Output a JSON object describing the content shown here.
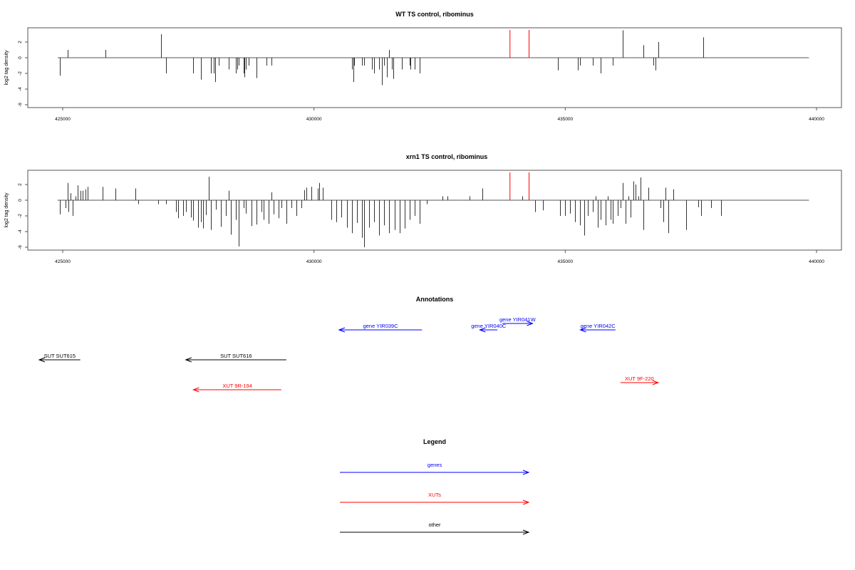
{
  "colors": {
    "gene": "#0000ff",
    "xut": "#ff0000",
    "other": "#000000",
    "highlight": "#ff0000",
    "bar": "#333333"
  },
  "chart_data": [
    {
      "type": "bar",
      "title": "WT TS control, ribominus",
      "xlabel": "",
      "ylabel": "log2 tag density",
      "xlim": [
        424400,
        440500
      ],
      "ylim": [
        -6.3,
        3.8
      ],
      "xticks": [
        425000,
        430000,
        435000,
        440000
      ],
      "xtick_labels": [
        "425000",
        "430000",
        "435000",
        "440000"
      ],
      "yticks": [
        2,
        0,
        -2,
        -4,
        -6
      ],
      "ytick_labels": [
        "2",
        "0",
        "-2",
        "-4",
        "-6"
      ],
      "baseline": {
        "from": 424900,
        "to": 439850
      },
      "highlights": [
        433900,
        434280
      ],
      "points": [
        [
          424950,
          -2.3
        ],
        [
          425100,
          1.0
        ],
        [
          425850,
          1.0
        ],
        [
          426950,
          3.0
        ],
        [
          427050,
          -2.0
        ],
        [
          427600,
          -2.0
        ],
        [
          427750,
          -2.8
        ],
        [
          427950,
          -2.0
        ],
        [
          428000,
          -2.0
        ],
        [
          428030,
          -3.1
        ],
        [
          428100,
          -1.0
        ],
        [
          428300,
          -1.5
        ],
        [
          428450,
          -2.0
        ],
        [
          428480,
          -1.5
        ],
        [
          428500,
          -1.0
        ],
        [
          428600,
          -2.0
        ],
        [
          428620,
          -2.5
        ],
        [
          428650,
          -1.5
        ],
        [
          428700,
          -1.0
        ],
        [
          428850,
          -2.6
        ],
        [
          429050,
          -1.0
        ],
        [
          429150,
          -1.0
        ],
        [
          430750,
          -1.5
        ],
        [
          430780,
          -3.1
        ],
        [
          430800,
          -1.0
        ],
        [
          430950,
          -1.0
        ],
        [
          431000,
          -1.0
        ],
        [
          431150,
          -1.5
        ],
        [
          431200,
          -2.0
        ],
        [
          431300,
          -1.5
        ],
        [
          431350,
          -3.5
        ],
        [
          431400,
          -1.0
        ],
        [
          431450,
          -2.5
        ],
        [
          431500,
          1.0
        ],
        [
          431550,
          -1.5
        ],
        [
          431580,
          -2.7
        ],
        [
          431750,
          -1.5
        ],
        [
          431900,
          -1.0
        ],
        [
          431920,
          -1.5
        ],
        [
          432000,
          -1.5
        ],
        [
          432100,
          -2.0
        ],
        [
          434850,
          -1.6
        ],
        [
          435250,
          -1.6
        ],
        [
          435300,
          -1.0
        ],
        [
          435550,
          -1.0
        ],
        [
          435700,
          -2.0
        ],
        [
          435950,
          -1.0
        ],
        [
          436150,
          3.5
        ],
        [
          436550,
          1.6
        ],
        [
          436750,
          -1.0
        ],
        [
          436800,
          -1.6
        ],
        [
          436850,
          2.0
        ],
        [
          437750,
          2.6
        ]
      ]
    },
    {
      "type": "bar",
      "title": "xrn1 TS control, ribominus",
      "xlabel": "",
      "ylabel": "log2 tag density",
      "xlim": [
        424400,
        440500
      ],
      "ylim": [
        -6.3,
        3.8
      ],
      "xticks": [
        425000,
        430000,
        435000,
        440000
      ],
      "xtick_labels": [
        "425000",
        "430000",
        "435000",
        "440000"
      ],
      "yticks": [
        2,
        0,
        -2,
        -4,
        -6
      ],
      "ytick_labels": [
        "2",
        "0",
        "-2",
        "-4",
        "-6"
      ],
      "baseline": {
        "from": 424900,
        "to": 439850
      },
      "highlights": [
        433900,
        434280
      ],
      "points": [
        [
          424950,
          -1.8
        ],
        [
          425050,
          -1.0
        ],
        [
          425100,
          2.2
        ],
        [
          425120,
          -1.5
        ],
        [
          425150,
          0.9
        ],
        [
          425200,
          -2.0
        ],
        [
          425250,
          0.5
        ],
        [
          425300,
          1.9
        ],
        [
          425350,
          1.2
        ],
        [
          425400,
          1.2
        ],
        [
          425450,
          1.4
        ],
        [
          425500,
          1.7
        ],
        [
          425800,
          1.7
        ],
        [
          426050,
          1.5
        ],
        [
          426450,
          1.5
        ],
        [
          426500,
          -0.5
        ],
        [
          426900,
          -0.5
        ],
        [
          427050,
          -0.5
        ],
        [
          427250,
          -1.5
        ],
        [
          427300,
          -2.3
        ],
        [
          427400,
          -2.0
        ],
        [
          427450,
          -1.5
        ],
        [
          427550,
          -2.2
        ],
        [
          427600,
          -2.6
        ],
        [
          427700,
          -3.5
        ],
        [
          427750,
          -2.8
        ],
        [
          427800,
          -3.6
        ],
        [
          427850,
          -1.9
        ],
        [
          427900,
          3.0
        ],
        [
          427950,
          -3.8
        ],
        [
          428050,
          -1.2
        ],
        [
          428150,
          -3.4
        ],
        [
          428250,
          -2.0
        ],
        [
          428300,
          1.2
        ],
        [
          428350,
          -4.4
        ],
        [
          428450,
          -2.5
        ],
        [
          428500,
          -5.9
        ],
        [
          428600,
          -1.0
        ],
        [
          428650,
          -1.7
        ],
        [
          428750,
          -3.3
        ],
        [
          428850,
          -3.1
        ],
        [
          428950,
          -1.5
        ],
        [
          429000,
          -2.5
        ],
        [
          429100,
          -3.0
        ],
        [
          429150,
          1.0
        ],
        [
          429200,
          -1.8
        ],
        [
          429300,
          -2.3
        ],
        [
          429350,
          -1.0
        ],
        [
          429450,
          -3.0
        ],
        [
          429550,
          -1.0
        ],
        [
          429650,
          -2.0
        ],
        [
          429750,
          -1.0
        ],
        [
          429800,
          1.3
        ],
        [
          429850,
          1.6
        ],
        [
          429950,
          1.7
        ],
        [
          430080,
          1.5
        ],
        [
          430100,
          2.2
        ],
        [
          430180,
          1.6
        ],
        [
          430350,
          -2.5
        ],
        [
          430450,
          -2.8
        ],
        [
          430550,
          -2.2
        ],
        [
          430650,
          -3.5
        ],
        [
          430750,
          -4.2
        ],
        [
          430850,
          -2.9
        ],
        [
          430950,
          -4.8
        ],
        [
          431000,
          -6.0
        ],
        [
          431100,
          -3.5
        ],
        [
          431200,
          -2.8
        ],
        [
          431300,
          -4.5
        ],
        [
          431400,
          -3.2
        ],
        [
          431500,
          -4.2
        ],
        [
          431600,
          -3.8
        ],
        [
          431700,
          -4.2
        ],
        [
          431800,
          -3.6
        ],
        [
          431900,
          -2.5
        ],
        [
          432000,
          -2.0
        ],
        [
          432100,
          -3.0
        ],
        [
          432250,
          -0.5
        ],
        [
          432550,
          0.5
        ],
        [
          432650,
          0.5
        ],
        [
          433100,
          0.5
        ],
        [
          433350,
          1.5
        ],
        [
          434150,
          0.5
        ],
        [
          434400,
          -1.5
        ],
        [
          434550,
          -1.3
        ],
        [
          434900,
          -2.0
        ],
        [
          435000,
          -2.0
        ],
        [
          435100,
          -1.7
        ],
        [
          435200,
          -2.8
        ],
        [
          435300,
          -3.2
        ],
        [
          435380,
          -4.5
        ],
        [
          435450,
          -2.0
        ],
        [
          435550,
          -1.5
        ],
        [
          435600,
          0.5
        ],
        [
          435650,
          -3.5
        ],
        [
          435700,
          -2.5
        ],
        [
          435800,
          -3.2
        ],
        [
          435850,
          0.5
        ],
        [
          435900,
          -2.5
        ],
        [
          435950,
          -3.0
        ],
        [
          436050,
          -2.0
        ],
        [
          436100,
          -1.0
        ],
        [
          436150,
          2.2
        ],
        [
          436200,
          -3.0
        ],
        [
          436250,
          0.5
        ],
        [
          436300,
          -2.2
        ],
        [
          436350,
          2.4
        ],
        [
          436400,
          2.0
        ],
        [
          436450,
          0.5
        ],
        [
          436500,
          2.9
        ],
        [
          436550,
          -3.8
        ],
        [
          436650,
          1.6
        ],
        [
          436900,
          -1.0
        ],
        [
          436950,
          -2.8
        ],
        [
          437000,
          1.6
        ],
        [
          437050,
          -4.2
        ],
        [
          437150,
          1.4
        ],
        [
          437400,
          -3.8
        ],
        [
          437650,
          -0.9
        ],
        [
          437700,
          -2.0
        ],
        [
          437900,
          -1.0
        ],
        [
          438100,
          -2.0
        ]
      ]
    }
  ],
  "annotations": {
    "title": "Annotations",
    "features": [
      {
        "label": "gene YIR039C",
        "kind": "gene",
        "strand": "-",
        "start": 430500,
        "end": 432150
      },
      {
        "label": "gene YIR040C",
        "kind": "gene",
        "strand": "-",
        "start": 433300,
        "end": 433650
      },
      {
        "label": "gene YIR041W",
        "kind": "gene",
        "strand": "+",
        "start": 433750,
        "end": 434350
      },
      {
        "label": "gene YIR042C",
        "kind": "gene",
        "strand": "-",
        "start": 435300,
        "end": 436000
      },
      {
        "label": "SUT SUT615",
        "kind": "other",
        "strand": "-",
        "start": 424300,
        "end": 425350
      },
      {
        "label": "SUT SUT616",
        "kind": "other",
        "strand": "-",
        "start": 427450,
        "end": 429450
      },
      {
        "label": "XUT 9R-194",
        "kind": "xut",
        "strand": "-",
        "start": 427600,
        "end": 429350
      },
      {
        "label": "XUT 9F-220",
        "kind": "xut",
        "strand": "+",
        "start": 436100,
        "end": 436850
      }
    ]
  },
  "legend": {
    "title": "Legend",
    "items": [
      {
        "label": "genes",
        "kind": "gene"
      },
      {
        "label": "XUTs",
        "kind": "xut"
      },
      {
        "label": "other",
        "kind": "other"
      }
    ]
  }
}
